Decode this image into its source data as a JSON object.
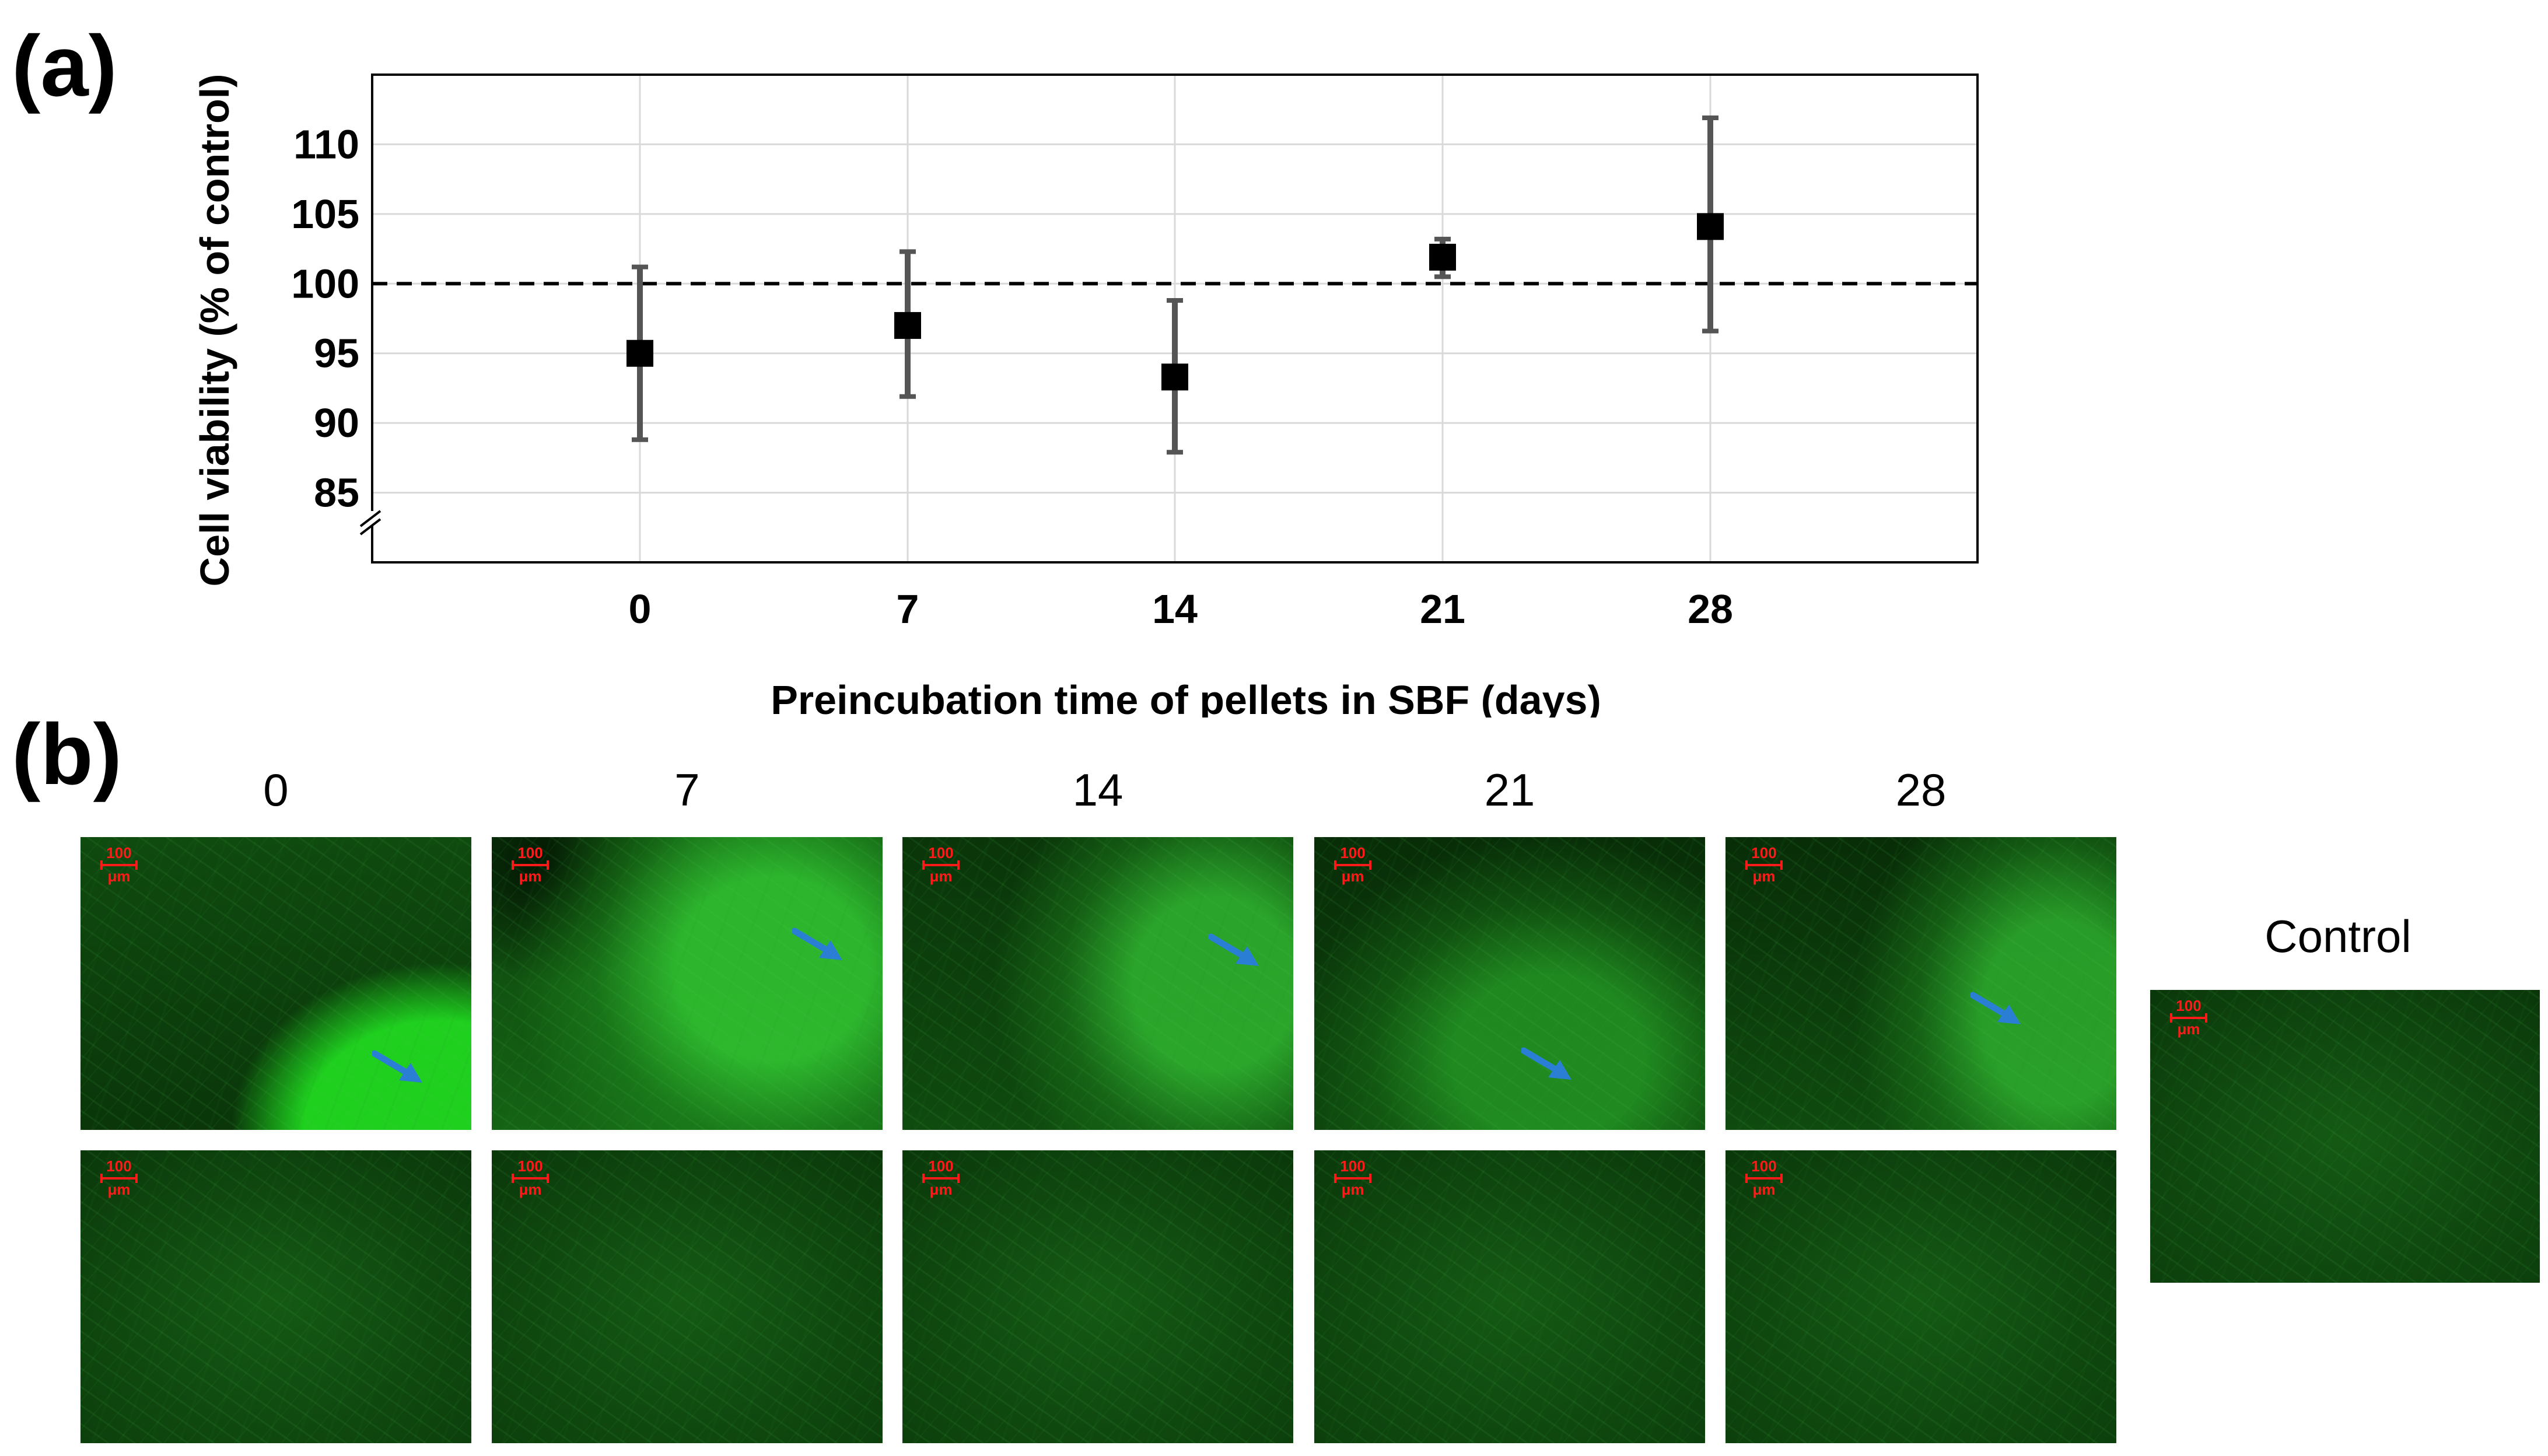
{
  "panel_a_label": "(a)",
  "panel_b_label": "(b)",
  "chart_data": {
    "type": "scatter",
    "categories": [
      "0",
      "7",
      "14",
      "21",
      "28"
    ],
    "values": [
      95,
      97,
      93.3,
      101.9,
      104.1
    ],
    "error_low": [
      88.8,
      91.9,
      87.9,
      100.5,
      96.6
    ],
    "error_high": [
      101.2,
      102.3,
      98.8,
      103.2,
      111.9
    ],
    "xlabel": "Preincubation time of pellets in SBF (days)",
    "ylabel": "Cell viability (% of control)",
    "ylim": [
      80,
      115
    ],
    "yticks": [
      85,
      90,
      95,
      100,
      105,
      110
    ],
    "ytick_labels": [
      "85",
      "90",
      "95",
      "100",
      "105",
      "110"
    ],
    "reference_line": 100,
    "axis_break": true,
    "grid": true,
    "marker_color": "#000000",
    "errorbar_color": "#555555"
  },
  "micrographs": {
    "column_labels": [
      "0",
      "7",
      "14",
      "21",
      "28"
    ],
    "control_label": "Control",
    "scale_bar_value": "100",
    "scale_bar_unit": "μm",
    "fluorescence_color": "#1fd01f",
    "arrow_color": "#2a7fd4",
    "scale_bar_color": "#ff1a1a"
  }
}
